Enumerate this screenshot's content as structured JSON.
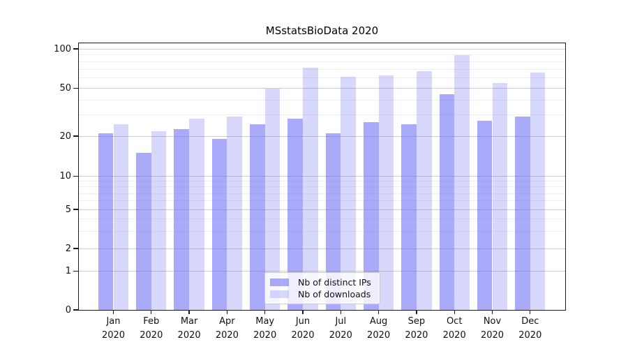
{
  "chart_data": {
    "type": "bar",
    "title": "MSstatsBioData 2020",
    "x_year": "2020",
    "categories": [
      "Jan",
      "Feb",
      "Mar",
      "Apr",
      "May",
      "Jun",
      "Jul",
      "Aug",
      "Sep",
      "Oct",
      "Nov",
      "Dec"
    ],
    "series": [
      {
        "name": "Nb of distinct IPs",
        "color": "rgba(100,100,245,0.55)",
        "values": [
          21,
          15,
          23,
          19,
          25,
          28,
          21,
          26,
          25,
          45,
          27,
          29
        ]
      },
      {
        "name": "Nb of downloads",
        "color": "rgba(100,100,245,0.25)",
        "values": [
          25,
          22,
          28,
          29,
          50,
          72,
          61,
          63,
          68,
          90,
          55,
          66
        ]
      }
    ],
    "y_axis": {
      "scale": "symlog",
      "ticks": [
        0,
        1,
        2,
        5,
        10,
        20,
        50,
        100
      ],
      "minor_gridlines": [
        3,
        4,
        6,
        7,
        8,
        9,
        30,
        40,
        60,
        70,
        80,
        90
      ],
      "top_value": 100
    },
    "legend": {
      "position": "bottom-center"
    },
    "grid": "on",
    "colors": {
      "major_grid": "#cccccc",
      "minor_grid": "#efefef",
      "axis": "#1a1a1a",
      "text": "#111111",
      "background": "#ffffff"
    }
  }
}
